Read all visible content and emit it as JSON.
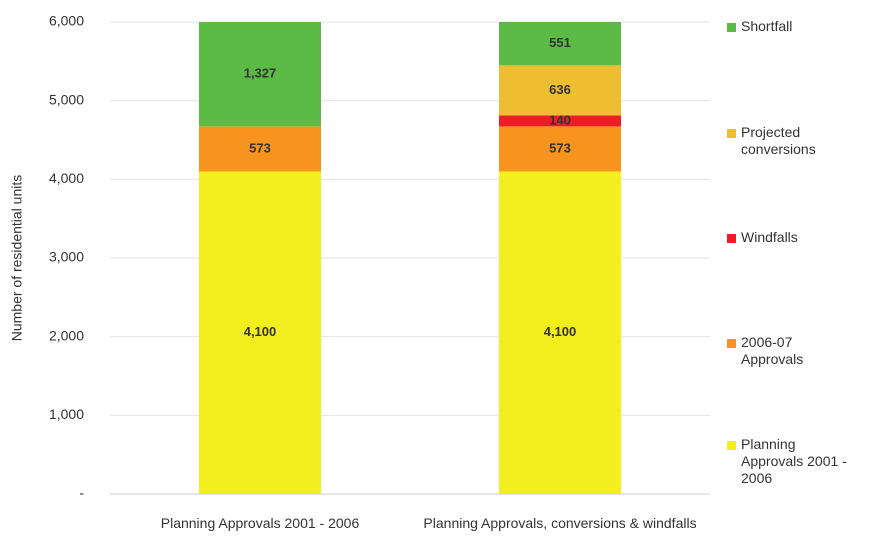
{
  "chart_data": {
    "type": "stacked_bar",
    "ylabel": "Number of residential units",
    "categories": [
      "Planning Approvals 2001 - 2006",
      "Planning Approvals, conversions & windfalls"
    ],
    "series": [
      {
        "name": "Planning Approvals 2001 - 2006",
        "color": "#f3ef1f",
        "values": [
          4100,
          4100
        ],
        "value_labels": [
          "4,100",
          "4,100"
        ]
      },
      {
        "name": "2006-07 Approvals",
        "color": "#f7941d",
        "values": [
          573,
          573
        ]
      },
      {
        "name": "Windfalls",
        "color": "#ee1c25",
        "values": [
          null,
          140
        ]
      },
      {
        "name": "Projected conversions",
        "color": "#efbd30",
        "values": [
          null,
          636
        ]
      },
      {
        "name": "Shortfall",
        "color": "#5cba47",
        "values": [
          1327,
          551
        ],
        "value_labels": [
          "1,327",
          "551"
        ]
      }
    ],
    "ylim": [
      0,
      6000
    ],
    "yticks": [
      {
        "value": 0,
        "label": "-"
      },
      {
        "value": 1000,
        "label": "1,000"
      },
      {
        "value": 2000,
        "label": "2,000"
      },
      {
        "value": 3000,
        "label": "3,000"
      },
      {
        "value": 4000,
        "label": "4,000"
      },
      {
        "value": 5000,
        "label": "5,000"
      },
      {
        "value": 6000,
        "label": "6,000"
      }
    ],
    "grid": true,
    "legend_position": "right"
  }
}
